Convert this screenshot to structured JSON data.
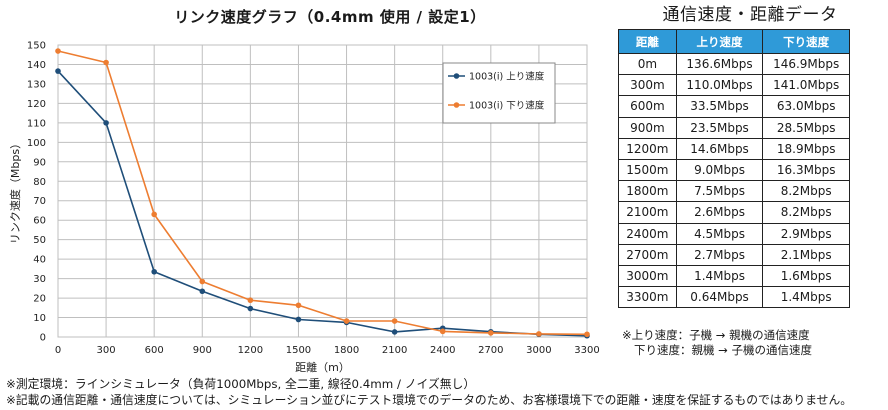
{
  "chart_data": {
    "type": "line",
    "title": "リンク速度グラフ（0.4mm 使用 / 設定1）",
    "xlabel": "距離（m）",
    "ylabel": "リンク速度（Mbps）",
    "x": [
      0,
      300,
      600,
      900,
      1200,
      1500,
      1800,
      2100,
      2400,
      2700,
      3000,
      3300
    ],
    "xlim": [
      0,
      3300
    ],
    "ylim": [
      0,
      150
    ],
    "y_ticks": [
      0,
      10,
      20,
      30,
      40,
      50,
      60,
      70,
      80,
      90,
      100,
      110,
      120,
      130,
      140,
      150
    ],
    "grid": true,
    "legend_position": "top-right",
    "series": [
      {
        "name": "1003(i) 上り速度",
        "color": "#1f4e79",
        "values": [
          136.6,
          110.0,
          33.5,
          23.5,
          14.6,
          9.0,
          7.5,
          2.6,
          4.5,
          2.7,
          1.4,
          0.64
        ]
      },
      {
        "name": "1003(i) 下り速度",
        "color": "#ed7d31",
        "values": [
          146.9,
          141.0,
          63.0,
          28.5,
          18.9,
          16.3,
          8.2,
          8.2,
          2.9,
          2.1,
          1.6,
          1.4
        ]
      }
    ]
  },
  "table": {
    "title": "通信速度・距離データ",
    "headers": [
      "距離",
      "上り速度",
      "下り速度"
    ],
    "header_color": "#2f9ad8",
    "rows": [
      [
        "0m",
        "136.6Mbps",
        "146.9Mbps"
      ],
      [
        "300m",
        "110.0Mbps",
        "141.0Mbps"
      ],
      [
        "600m",
        "33.5Mbps",
        "63.0Mbps"
      ],
      [
        "900m",
        "23.5Mbps",
        "28.5Mbps"
      ],
      [
        "1200m",
        "14.6Mbps",
        "18.9Mbps"
      ],
      [
        "1500m",
        "9.0Mbps",
        "16.3Mbps"
      ],
      [
        "1800m",
        "7.5Mbps",
        "8.2Mbps"
      ],
      [
        "2100m",
        "2.6Mbps",
        "8.2Mbps"
      ],
      [
        "2400m",
        "4.5Mbps",
        "2.9Mbps"
      ],
      [
        "2700m",
        "2.7Mbps",
        "2.1Mbps"
      ],
      [
        "3000m",
        "1.4Mbps",
        "1.6Mbps"
      ],
      [
        "3300m",
        "0.64Mbps",
        "1.4Mbps"
      ]
    ],
    "notes": [
      "※上り速度：子機 → 親機の通信速度",
      "下り速度：親機 → 子機の通信速度"
    ]
  },
  "footnotes": [
    "※測定環境：ラインシミュレータ（負荷1000Mbps, 全二重, 線径0.4mm / ノイズ無し）",
    "※記載の通信距離・通信速度については、シミュレーション並びにテスト環境でのデータのため、お客様環境下での距離・速度を保証するものではありません。"
  ]
}
